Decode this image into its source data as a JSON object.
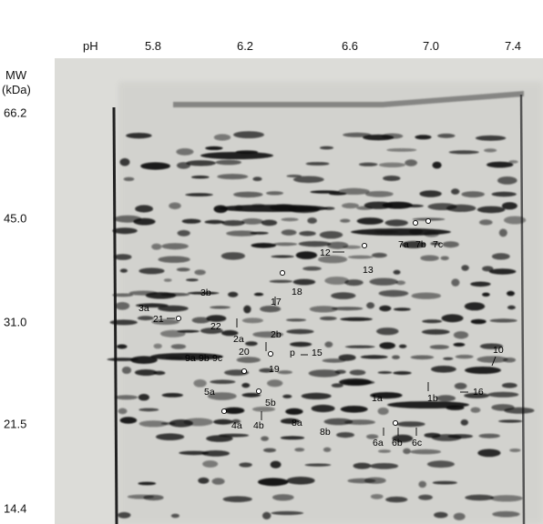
{
  "axes": {
    "ph_title": "pH",
    "ph_ticks": [
      "5.8",
      "6.2",
      "6.6",
      "7.0",
      "7.4"
    ],
    "mw_title_line1": "MW",
    "mw_title_line2": "(kDa)",
    "mw_ticks": [
      "66.2",
      "45.0",
      "31.0",
      "21.5",
      "14.4"
    ]
  },
  "spot_labels": [
    "3b",
    "3a",
    "21",
    "22",
    "2a",
    "2b",
    "20",
    "19",
    "9a",
    "9b",
    "9c",
    "p",
    "15",
    "5a",
    "5b",
    "4a",
    "4b",
    "8a",
    "8b",
    "17",
    "18",
    "12",
    "13",
    "7a",
    "7b",
    "7c",
    "1a",
    "1b",
    "16",
    "10",
    "6a",
    "6b",
    "6c"
  ],
  "colors": {
    "gel_background": "#d9d9d6",
    "spot": "#101010"
  }
}
